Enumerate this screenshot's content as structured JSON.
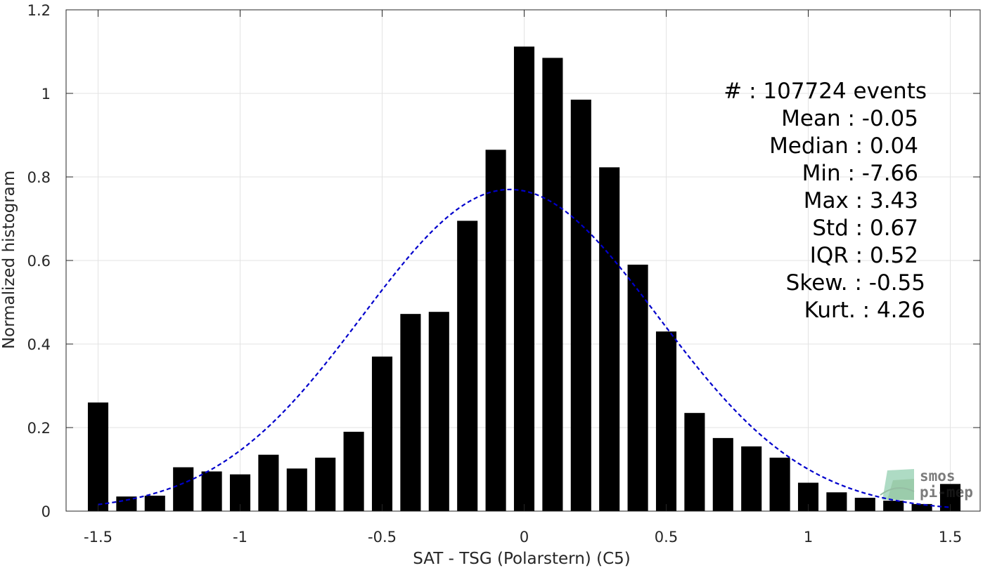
{
  "chart_data": {
    "type": "bar",
    "xlabel": "SAT - TSG (Polarstern) (C5)",
    "ylabel": "Normalized histogram",
    "xlim": [
      -1.5,
      1.5
    ],
    "ylim": [
      0,
      1.2
    ],
    "xticks": [
      -1.5,
      -1,
      -0.5,
      0,
      0.5,
      1,
      1.5
    ],
    "xtick_labels": [
      "-1.5",
      "-1",
      "-0.5",
      "0",
      "0.5",
      "1",
      "1.5"
    ],
    "yticks": [
      0,
      0.2,
      0.4,
      0.6,
      0.8,
      1,
      1.2
    ],
    "ytick_labels": [
      "0",
      "0.2",
      "0.4",
      "0.6",
      "0.8",
      "1",
      "1.2"
    ],
    "grid": true,
    "bar_color": "#000000",
    "series": [
      {
        "x": [
          -1.5,
          -1.4,
          -1.3,
          -1.2,
          -1.1,
          -1.0,
          -0.9,
          -0.8,
          -0.7,
          -0.6,
          -0.5,
          -0.4,
          -0.3,
          -0.2,
          -0.1,
          0.0,
          0.1,
          0.2,
          0.3,
          0.4,
          0.5,
          0.6,
          0.7,
          0.8,
          0.9,
          1.0,
          1.1,
          1.2,
          1.3,
          1.4,
          1.5
        ],
        "values": [
          0.26,
          0.035,
          0.037,
          0.105,
          0.095,
          0.088,
          0.135,
          0.102,
          0.128,
          0.19,
          0.37,
          0.472,
          0.477,
          0.695,
          0.865,
          1.112,
          1.085,
          0.985,
          0.823,
          0.59,
          0.43,
          0.235,
          0.175,
          0.155,
          0.128,
          0.068,
          0.045,
          0.032,
          0.025,
          0.017,
          0.065
        ]
      }
    ],
    "fit_curve": {
      "style": "dashed",
      "color": "#0000cc",
      "mean": -0.05,
      "std": 0.52,
      "peak": 0.77,
      "x_range": [
        -1.5,
        1.5
      ]
    },
    "stats": [
      "#  : 107724 events",
      "Mean : -0.05",
      "Median : 0.04",
      "Min : -7.66",
      "Max : 3.43",
      "Std : 0.67",
      "IQR : 0.52",
      "Skew. : -0.55",
      "Kurt. : 4.26"
    ],
    "watermark": [
      "smos",
      "pi-mep"
    ],
    "watermark_color": "#3a9a5a"
  }
}
